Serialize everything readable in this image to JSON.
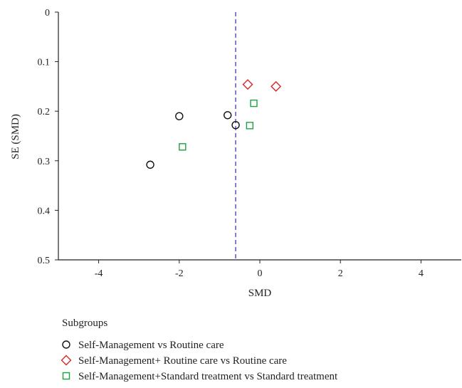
{
  "chart_data": {
    "type": "scatter",
    "xlabel": "SMD",
    "ylabel": "SE (SMD)",
    "xlim": [
      -5,
      5
    ],
    "ylim": [
      0,
      0.5
    ],
    "y_inverted": true,
    "x_ticks": [
      "-4",
      "-2",
      "0",
      "2",
      "4"
    ],
    "x_tick_values": [
      -4,
      -2,
      0,
      2,
      4
    ],
    "y_ticks": [
      "0",
      "0.1",
      "0.2",
      "0.3",
      "0.4",
      "0.5"
    ],
    "y_tick_values": [
      0,
      0.1,
      0.2,
      0.3,
      0.4,
      0.5
    ],
    "reference_line": {
      "x": -0.6,
      "style": "dashed",
      "color": "#2b2bb8"
    },
    "grid": false,
    "legend_placement": "bottom-left",
    "legend_title": "Subgroups",
    "series": [
      {
        "name": "Self-Management vs Routine care",
        "marker": "circle",
        "color": "#111111",
        "points": [
          {
            "x": -2.72,
            "y": 0.308
          },
          {
            "x": -2.0,
            "y": 0.21
          },
          {
            "x": -0.8,
            "y": 0.208
          },
          {
            "x": -0.6,
            "y": 0.228
          }
        ]
      },
      {
        "name": "Self-Management+ Routine care vs Routine care",
        "marker": "diamond",
        "color": "#d62728",
        "points": [
          {
            "x": -0.3,
            "y": 0.146
          },
          {
            "x": 0.4,
            "y": 0.15
          }
        ]
      },
      {
        "name": "Self-Management+Standard treatment vs Standard treatment",
        "marker": "square",
        "color": "#1aa33a",
        "points": [
          {
            "x": -0.15,
            "y": 0.184
          },
          {
            "x": -0.25,
            "y": 0.229
          },
          {
            "x": -1.92,
            "y": 0.272
          }
        ]
      }
    ]
  }
}
